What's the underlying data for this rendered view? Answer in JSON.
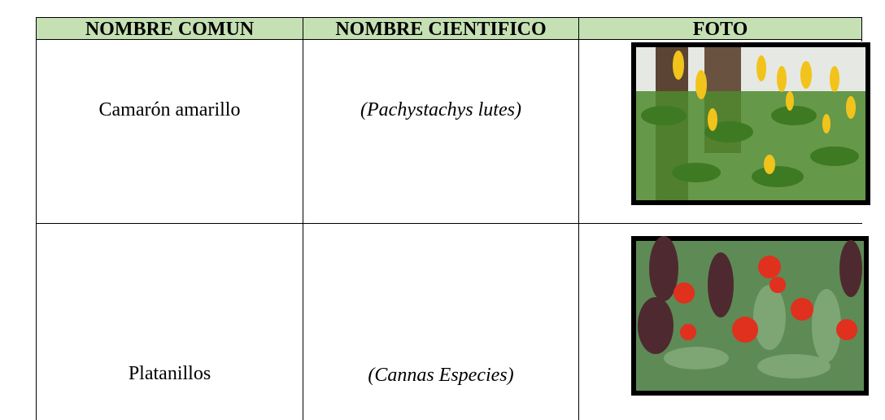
{
  "table": {
    "header": [
      "NOMBRE COMUN",
      "NOMBRE CIENTIFICO",
      "FOTO"
    ],
    "rows": [
      [
        "Camarón amarillo",
        "(Pachystachys lutes)"
      ],
      [
        "Platanillos",
        "(Cannas Especies)"
      ]
    ]
  }
}
